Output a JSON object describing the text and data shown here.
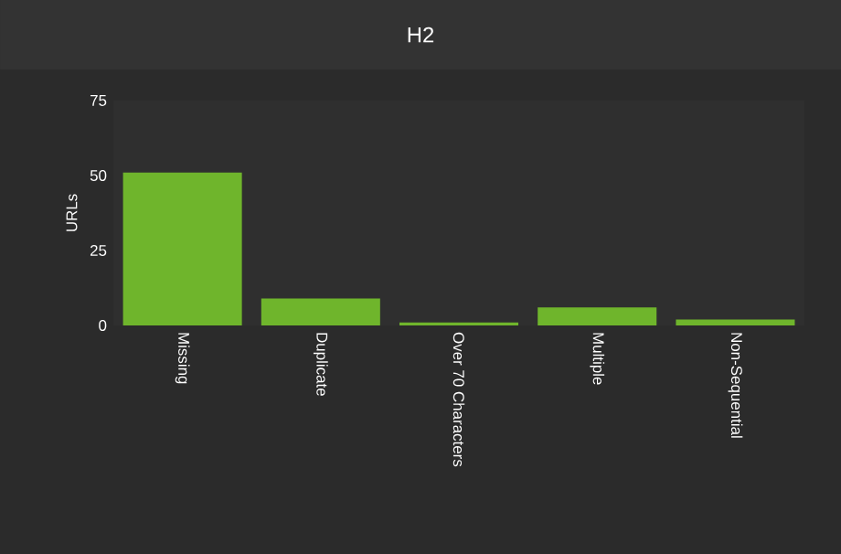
{
  "chart_data": {
    "type": "bar",
    "title": "H2",
    "ylabel": "URLs",
    "categories": [
      "Missing",
      "Duplicate",
      "Over 70 Characters",
      "Multiple",
      "Non-Sequential"
    ],
    "values": [
      51,
      9,
      1,
      6,
      2
    ],
    "color": "#6fb52c",
    "ylim": [
      0,
      75
    ],
    "yticks": [
      0,
      25,
      50,
      75
    ],
    "grid": false
  }
}
